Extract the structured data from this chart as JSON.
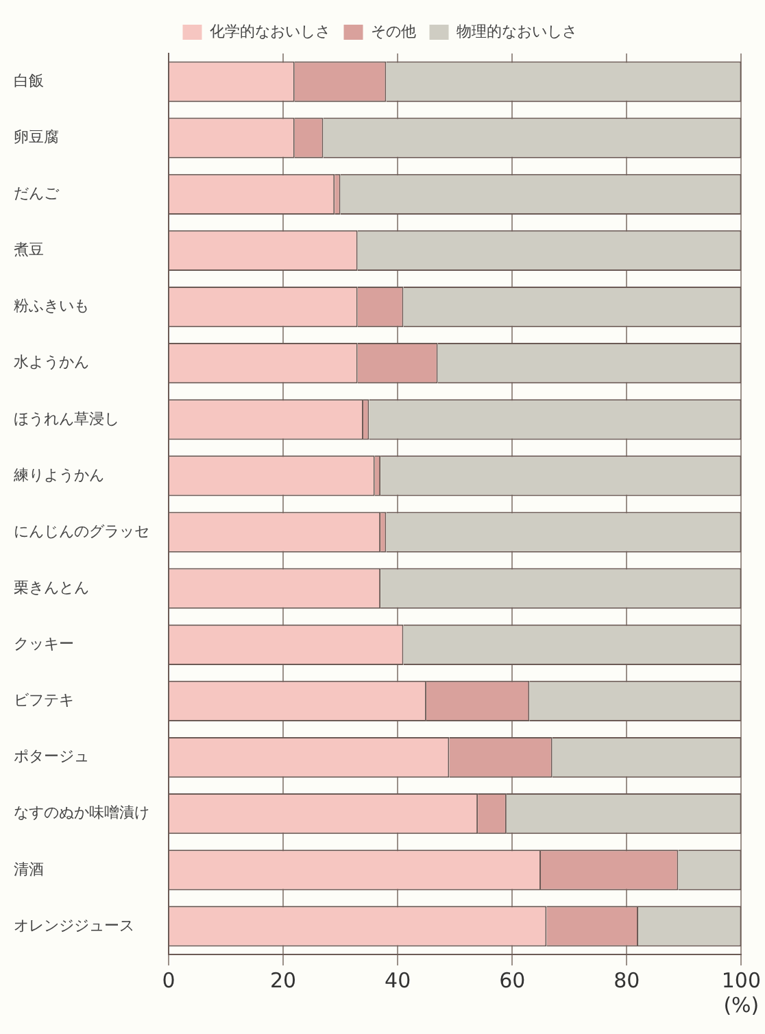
{
  "chart_data": {
    "type": "bar",
    "orientation": "horizontal",
    "stacked": true,
    "categories": [
      "白飯",
      "卵豆腐",
      "だんご",
      "煮豆",
      "粉ふきいも",
      "水ようかん",
      "ほうれん草浸し",
      "練りようかん",
      "にんじんのグラッセ",
      "栗きんとん",
      "クッキー",
      "ビフテキ",
      "ポタージュ",
      "なすのぬか味噌漬け",
      "清酒",
      "オレンジジュース"
    ],
    "series": [
      {
        "name": "化学的なおいしさ",
        "color": "#f6c6c1",
        "values": [
          22,
          22,
          29,
          33,
          33,
          33,
          34,
          36,
          37,
          37,
          41,
          45,
          49,
          54,
          65,
          66
        ]
      },
      {
        "name": "その他",
        "color": "#d9a19c",
        "values": [
          16,
          5,
          1,
          0,
          8,
          14,
          1,
          1,
          1,
          0,
          0,
          18,
          18,
          5,
          24,
          16
        ]
      },
      {
        "name": "物理的なおいしさ",
        "color": "#cfcdc3",
        "values": [
          62,
          73,
          70,
          67,
          59,
          53,
          65,
          63,
          62,
          63,
          59,
          37,
          33,
          41,
          11,
          18
        ]
      }
    ],
    "xlim": [
      0,
      100
    ],
    "xticks": [
      0,
      20,
      40,
      60,
      80,
      {
        "value": 100,
        "label": "100\n(%)"
      }
    ],
    "grid": "x",
    "legend": "top"
  }
}
